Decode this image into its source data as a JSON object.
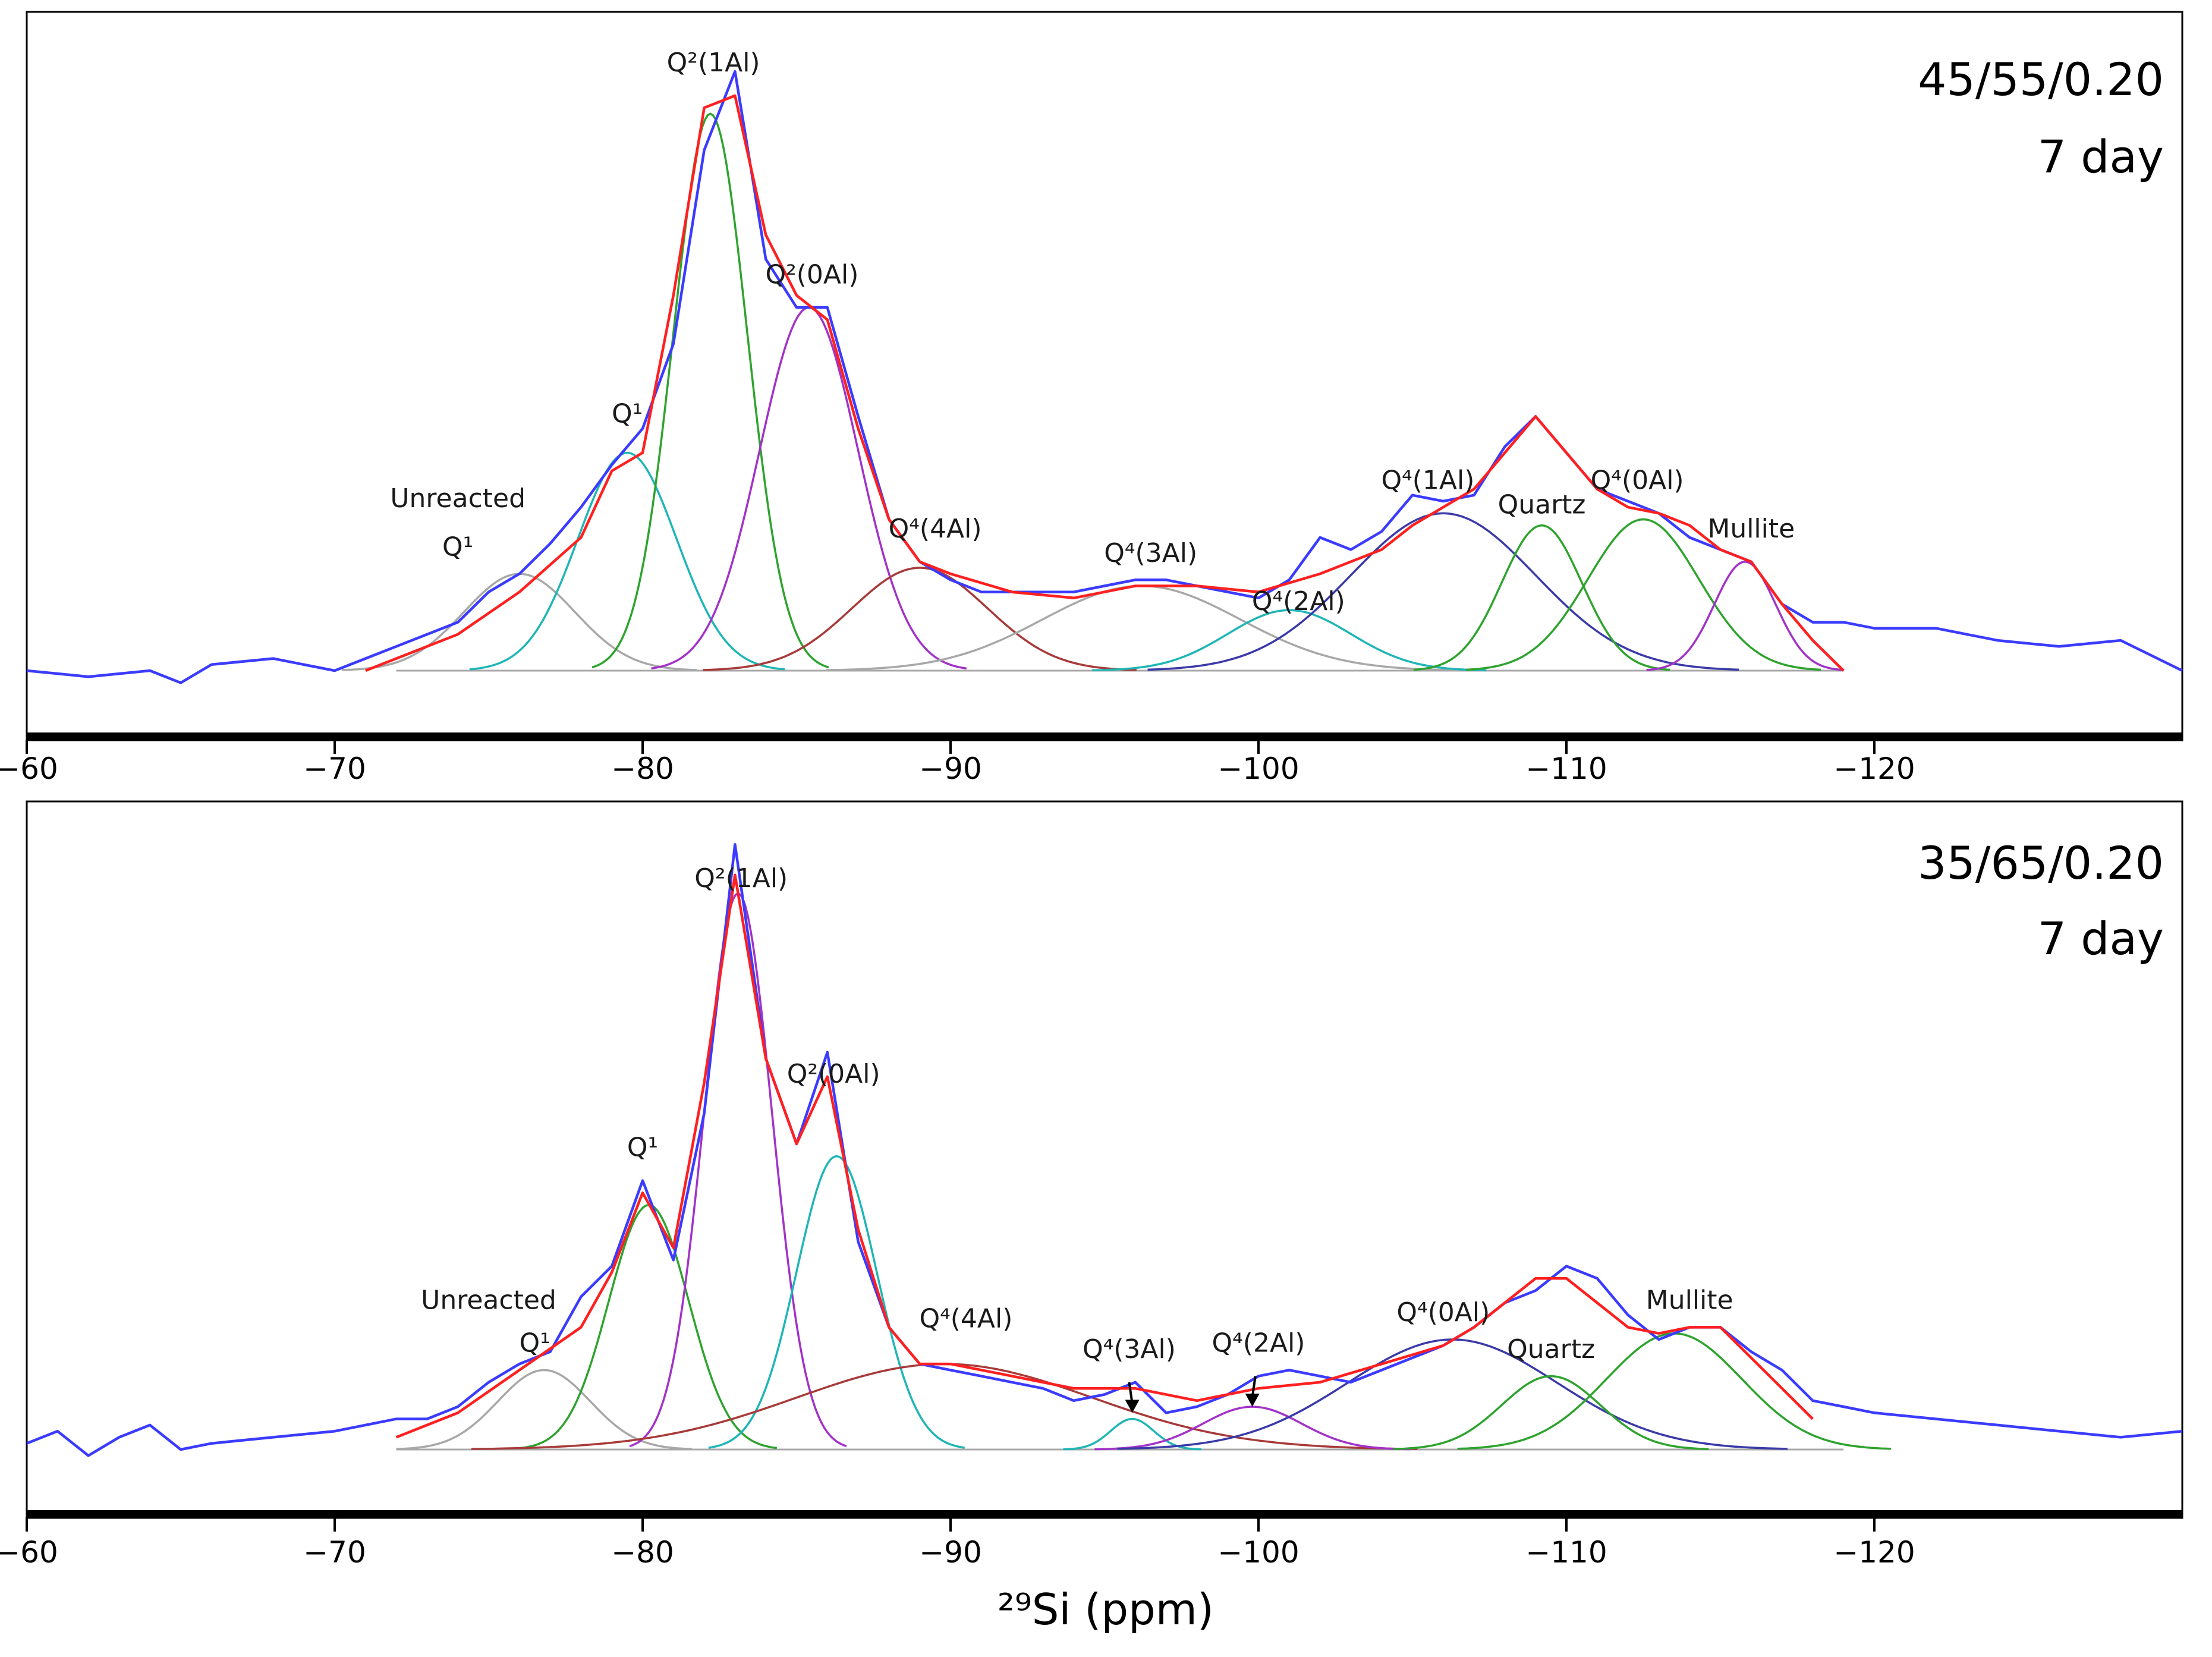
{
  "chart_data": [
    {
      "type": "line",
      "title": "45/55/0.20 7 day",
      "sample": "45/55/0.20",
      "age": "7 day",
      "xlabel": "",
      "xlim": [
        -60,
        -130
      ],
      "ylim": [
        0,
        1
      ],
      "xticks": [
        -60,
        -70,
        -80,
        -90,
        -100,
        -110,
        -120
      ],
      "tick_labels": [
        "−60",
        "−70",
        "−80",
        "−90",
        "−100",
        "−110",
        "−120"
      ],
      "grid": false,
      "baseline": 0.0,
      "colors": {
        "experimental": "#3b3bff",
        "fit": "#ff2020",
        "grey": "#a8a8a8",
        "teal": "#1fb5b5",
        "green": "#2ea32e",
        "purple": "#a232c8",
        "brown": "#a83a3a",
        "navy": "#3a3aa8"
      },
      "series": [
        {
          "name": "Experimental spectrum",
          "color_key": "experimental",
          "x": [
            -60,
            -62,
            -64,
            -65,
            -66,
            -68,
            -70,
            -72,
            -74,
            -75,
            -76,
            -77,
            -78,
            -79,
            -80,
            -81,
            -82,
            -83,
            -84,
            -85,
            -86,
            -87,
            -88,
            -89,
            -90,
            -91,
            -92,
            -93,
            -94,
            -95,
            -96,
            -97,
            -98,
            -99,
            -100,
            -101,
            -102,
            -103,
            -104,
            -105,
            -106,
            -107,
            -108,
            -109,
            -110,
            -111,
            -112,
            -113,
            -114,
            -115,
            -116,
            -117,
            -118,
            -119,
            -120,
            -122,
            -124,
            -126,
            -128,
            -130
          ],
          "y": [
            0.0,
            -0.01,
            0.0,
            -0.02,
            0.01,
            0.02,
            0.0,
            0.04,
            0.08,
            0.13,
            0.16,
            0.21,
            0.27,
            0.34,
            0.4,
            0.54,
            0.86,
            0.99,
            0.68,
            0.6,
            0.6,
            0.42,
            0.25,
            0.18,
            0.15,
            0.13,
            0.13,
            0.13,
            0.13,
            0.14,
            0.15,
            0.15,
            0.14,
            0.13,
            0.12,
            0.15,
            0.22,
            0.2,
            0.23,
            0.29,
            0.28,
            0.29,
            0.37,
            0.42,
            0.36,
            0.3,
            0.28,
            0.26,
            0.22,
            0.2,
            0.18,
            0.11,
            0.08,
            0.08,
            0.07,
            0.07,
            0.05,
            0.04,
            0.05,
            0.0
          ]
        },
        {
          "name": "Sum of fitted components",
          "color_key": "fit",
          "x": [
            -71,
            -74,
            -76,
            -78,
            -79,
            -80,
            -81,
            -82,
            -83,
            -84,
            -85,
            -86,
            -87,
            -88,
            -89,
            -90,
            -92,
            -94,
            -96,
            -98,
            -100,
            -102,
            -104,
            -105,
            -106,
            -107,
            -108,
            -109,
            -110,
            -111,
            -112,
            -113,
            -114,
            -115,
            -116,
            -117,
            -118,
            -119
          ],
          "y": [
            0.0,
            0.06,
            0.13,
            0.22,
            0.33,
            0.36,
            0.62,
            0.93,
            0.95,
            0.72,
            0.62,
            0.58,
            0.4,
            0.25,
            0.18,
            0.16,
            0.13,
            0.12,
            0.14,
            0.14,
            0.13,
            0.16,
            0.2,
            0.24,
            0.27,
            0.3,
            0.36,
            0.42,
            0.36,
            0.3,
            0.27,
            0.26,
            0.24,
            0.2,
            0.18,
            0.11,
            0.05,
            0.0
          ]
        }
      ],
      "components": [
        {
          "name": "Unreacted Q¹",
          "color_key": "grey",
          "center": -76,
          "height": 0.16,
          "width": 1.8
        },
        {
          "name": "Q¹",
          "color_key": "teal",
          "center": -79.5,
          "height": 0.36,
          "width": 1.6
        },
        {
          "name": "Q²(1Al)",
          "color_key": "green",
          "center": -82.2,
          "height": 0.92,
          "width": 1.2
        },
        {
          "name": "Q²(0Al)",
          "color_key": "purple",
          "center": -85.4,
          "height": 0.6,
          "width": 1.6
        },
        {
          "name": "Q⁴(4Al)",
          "color_key": "brown",
          "center": -89,
          "height": 0.17,
          "width": 2.2
        },
        {
          "name": "Q⁴(3Al)",
          "color_key": "grey",
          "center": -96.2,
          "height": 0.14,
          "width": 3.2
        },
        {
          "name": "Q⁴(2Al)",
          "color_key": "teal",
          "center": -101,
          "height": 0.1,
          "width": 2.0
        },
        {
          "name": "Q⁴(1Al)",
          "color_key": "navy",
          "center": -106,
          "height": 0.26,
          "width": 3.0
        },
        {
          "name": "Quartz",
          "color_key": "green",
          "center": -109.2,
          "height": 0.24,
          "width": 1.3
        },
        {
          "name": "Q⁴(0Al)",
          "color_key": "green",
          "center": -112.5,
          "height": 0.25,
          "width": 1.8
        },
        {
          "name": "Mullite",
          "color_key": "purple",
          "center": -115.8,
          "height": 0.18,
          "width": 1.0
        }
      ],
      "annotations": [
        {
          "text": "Unreacted",
          "x": -74,
          "y": 0.27
        },
        {
          "text": "Q¹",
          "x": -74,
          "y": 0.19
        },
        {
          "text": "Q¹",
          "x": -79.5,
          "y": 0.41
        },
        {
          "text": "Q²(1Al)",
          "x": -82.3,
          "y": 0.99
        },
        {
          "text": "Q²(0Al)",
          "x": -85.5,
          "y": 0.64
        },
        {
          "text": "Q⁴(4Al)",
          "x": -89.5,
          "y": 0.22
        },
        {
          "text": "Q⁴(3Al)",
          "x": -96.5,
          "y": 0.18
        },
        {
          "text": "Q⁴(2Al)",
          "x": -101.3,
          "y": 0.1
        },
        {
          "text": "Q⁴(1Al)",
          "x": -105.5,
          "y": 0.3
        },
        {
          "text": "Quartz",
          "x": -109.2,
          "y": 0.26
        },
        {
          "text": "Q⁴(0Al)",
          "x": -112.3,
          "y": 0.3
        },
        {
          "text": "Mullite",
          "x": -116,
          "y": 0.22
        }
      ],
      "arrows": []
    },
    {
      "type": "line",
      "title": "35/65/0.20 7 day",
      "sample": "35/65/0.20",
      "age": "7 day",
      "xlabel": "²⁹Si (ppm)",
      "xlim": [
        -60,
        -130
      ],
      "ylim": [
        0,
        1
      ],
      "xticks": [
        -60,
        -70,
        -80,
        -90,
        -100,
        -110,
        -120
      ],
      "tick_labels": [
        "−60",
        "−70",
        "−80",
        "−90",
        "−100",
        "−110",
        "−120"
      ],
      "grid": false,
      "baseline": 0.0,
      "colors": {
        "experimental": "#3b3bff",
        "fit": "#ff2020",
        "grey": "#a8a8a8",
        "teal": "#1fb5b5",
        "green": "#2ea32e",
        "purple": "#a232c8",
        "brown": "#a83a3a",
        "navy": "#3a3aa8"
      },
      "series": [
        {
          "name": "Experimental spectrum",
          "color_key": "experimental",
          "x": [
            -60,
            -61,
            -62,
            -63,
            -64,
            -65,
            -66,
            -68,
            -70,
            -72,
            -73,
            -74,
            -75,
            -76,
            -77,
            -78,
            -79,
            -80,
            -81,
            -82,
            -83,
            -84,
            -85,
            -86,
            -87,
            -88,
            -89,
            -90,
            -91,
            -92,
            -93,
            -94,
            -95,
            -96,
            -97,
            -98,
            -99,
            -100,
            -101,
            -102,
            -103,
            -104,
            -105,
            -106,
            -107,
            -108,
            -109,
            -110,
            -111,
            -112,
            -113,
            -114,
            -115,
            -116,
            -117,
            -118,
            -119,
            -120,
            -122,
            -124,
            -126,
            -128,
            -130
          ],
          "y": [
            0.01,
            0.03,
            -0.01,
            0.02,
            0.04,
            0.0,
            0.01,
            0.02,
            0.03,
            0.05,
            0.05,
            0.07,
            0.11,
            0.14,
            0.16,
            0.25,
            0.3,
            0.44,
            0.31,
            0.55,
            0.99,
            0.64,
            0.5,
            0.65,
            0.34,
            0.2,
            0.14,
            0.13,
            0.12,
            0.11,
            0.1,
            0.08,
            0.09,
            0.11,
            0.06,
            0.07,
            0.09,
            0.12,
            0.13,
            0.12,
            0.11,
            0.13,
            0.15,
            0.17,
            0.2,
            0.24,
            0.26,
            0.3,
            0.28,
            0.22,
            0.18,
            0.2,
            0.2,
            0.16,
            0.13,
            0.08,
            0.07,
            0.06,
            0.05,
            0.04,
            0.03,
            0.02,
            0.03
          ]
        },
        {
          "name": "Sum of fitted components",
          "color_key": "fit",
          "x": [
            -72,
            -74,
            -76,
            -78,
            -79,
            -80,
            -81,
            -82,
            -83,
            -84,
            -85,
            -86,
            -87,
            -88,
            -89,
            -90,
            -92,
            -94,
            -96,
            -98,
            -100,
            -102,
            -104,
            -106,
            -107,
            -108,
            -109,
            -110,
            -111,
            -112,
            -113,
            -114,
            -115,
            -116,
            -117,
            -118
          ],
          "y": [
            0.02,
            0.06,
            0.13,
            0.2,
            0.29,
            0.42,
            0.33,
            0.6,
            0.94,
            0.64,
            0.5,
            0.61,
            0.36,
            0.2,
            0.14,
            0.14,
            0.12,
            0.1,
            0.1,
            0.08,
            0.1,
            0.11,
            0.14,
            0.17,
            0.2,
            0.24,
            0.28,
            0.28,
            0.24,
            0.2,
            0.19,
            0.2,
            0.2,
            0.15,
            0.1,
            0.05
          ]
        }
      ],
      "components": [
        {
          "name": "Unreacted Q¹",
          "color_key": "grey",
          "center": -76.8,
          "height": 0.13,
          "width": 1.5
        },
        {
          "name": "Q¹",
          "color_key": "green",
          "center": -80.2,
          "height": 0.4,
          "width": 1.3
        },
        {
          "name": "Q²(1Al)",
          "color_key": "purple",
          "center": -83.1,
          "height": 0.91,
          "width": 1.1
        },
        {
          "name": "Q²(0Al)",
          "color_key": "teal",
          "center": -86.3,
          "height": 0.48,
          "width": 1.3
        },
        {
          "name": "Q⁴(4Al)",
          "color_key": "brown",
          "center": -89.8,
          "height": 0.14,
          "width": 4.8
        },
        {
          "name": "Q⁴(3Al)",
          "color_key": "teal",
          "center": -95.9,
          "height": 0.05,
          "width": 0.7
        },
        {
          "name": "Q⁴(2Al)",
          "color_key": "purple",
          "center": -99.8,
          "height": 0.07,
          "width": 1.6
        },
        {
          "name": "Q⁴(0Al)",
          "color_key": "navy",
          "center": -106.3,
          "height": 0.18,
          "width": 3.4
        },
        {
          "name": "Quartz",
          "color_key": "green",
          "center": -109.5,
          "height": 0.12,
          "width": 1.6
        },
        {
          "name": "Mullite",
          "color_key": "green",
          "center": -113.5,
          "height": 0.19,
          "width": 2.2
        }
      ],
      "annotations": [
        {
          "text": "Unreacted",
          "x": -75,
          "y": 0.23
        },
        {
          "text": "Q¹",
          "x": -76.5,
          "y": 0.16
        },
        {
          "text": "Q¹",
          "x": -80,
          "y": 0.48
        },
        {
          "text": "Q²(1Al)",
          "x": -83.2,
          "y": 0.92
        },
        {
          "text": "Q²(0Al)",
          "x": -86.2,
          "y": 0.6
        },
        {
          "text": "Q⁴(4Al)",
          "x": -90.5,
          "y": 0.2
        },
        {
          "text": "Q⁴(3Al)",
          "x": -95.8,
          "y": 0.15
        },
        {
          "text": "Q⁴(2Al)",
          "x": -100,
          "y": 0.16
        },
        {
          "text": "Q⁴(0Al)",
          "x": -106,
          "y": 0.21
        },
        {
          "text": "Quartz",
          "x": -109.5,
          "y": 0.15
        },
        {
          "text": "Mullite",
          "x": -114,
          "y": 0.23
        }
      ],
      "arrows": [
        {
          "label": "Q⁴(3Al)",
          "from": [
            -95.8,
            0.11
          ],
          "to": [
            -95.9,
            0.06
          ]
        },
        {
          "label": "Q⁴(2Al)",
          "from": [
            -99.9,
            0.12
          ],
          "to": [
            -99.8,
            0.07
          ]
        }
      ]
    }
  ]
}
